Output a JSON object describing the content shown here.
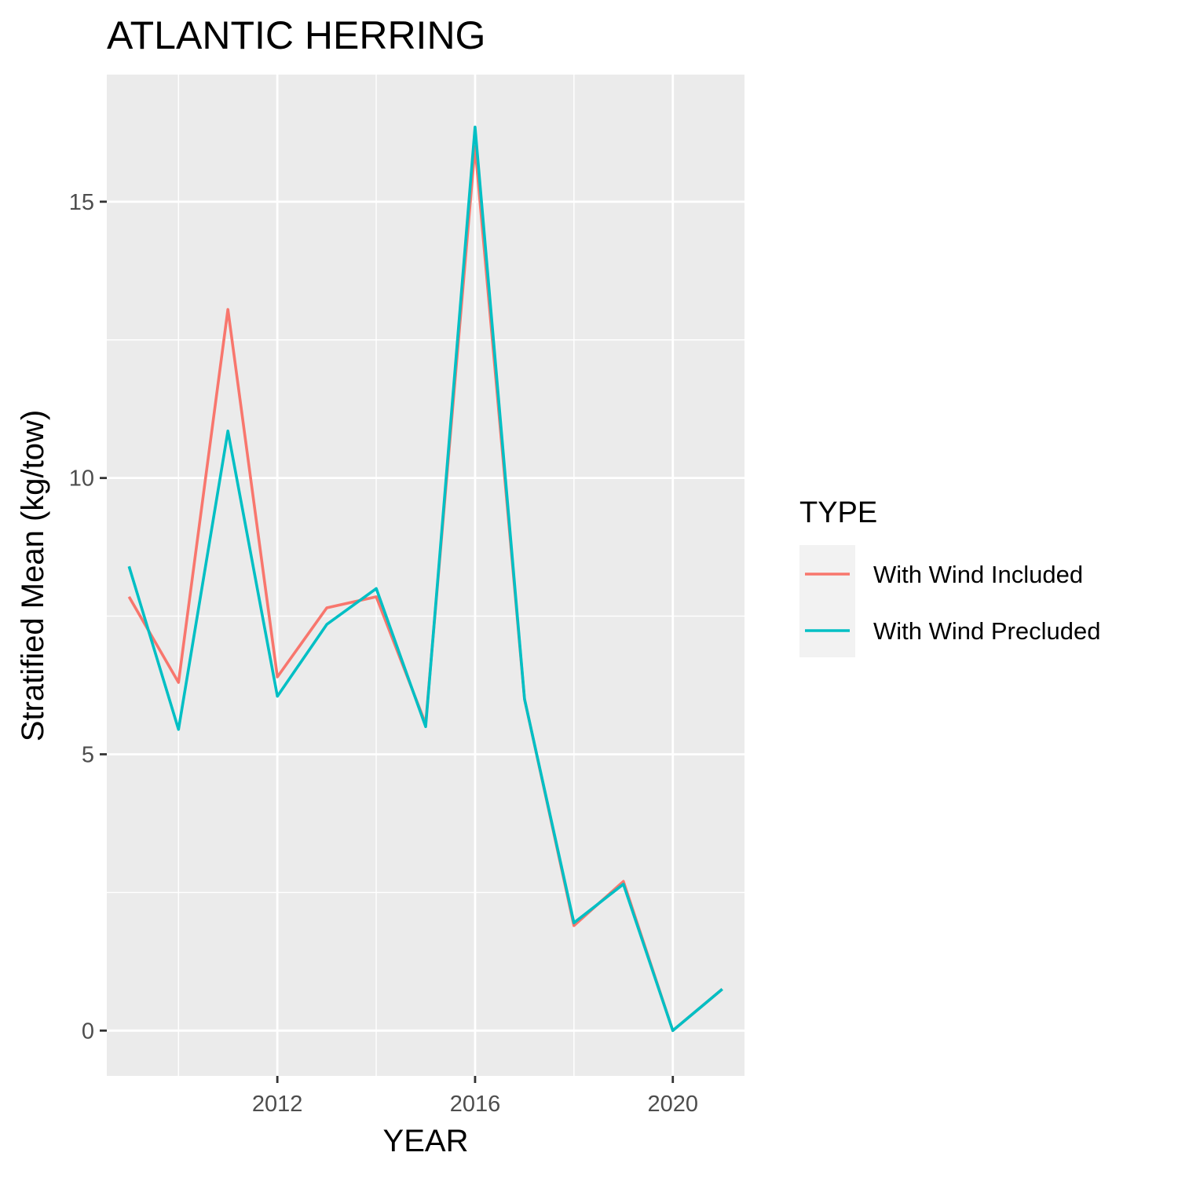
{
  "chart_data": {
    "type": "line",
    "title": "ATLANTIC HERRING",
    "xlabel": "YEAR",
    "ylabel": "Stratified Mean (kg/tow)",
    "xlim": [
      2008.55,
      2021.45
    ],
    "ylim": [
      -0.82,
      17.3
    ],
    "x_ticks": [
      2012,
      2016,
      2020
    ],
    "x_minor": [
      2010,
      2014,
      2018
    ],
    "y_ticks": [
      0,
      5,
      10,
      15
    ],
    "y_minor": [
      2.5,
      7.5,
      12.5
    ],
    "grid": true,
    "legend_position": "right",
    "legend_title": "TYPE",
    "x": [
      2009,
      2010,
      2011,
      2012,
      2013,
      2014,
      2015,
      2016,
      2017,
      2018,
      2019,
      2020,
      2021
    ],
    "series": [
      {
        "name": "With Wind Included",
        "color": "#F8766D",
        "values": [
          7.85,
          6.3,
          13.05,
          6.4,
          7.65,
          7.85,
          5.55,
          16.0,
          6.0,
          1.9,
          2.7,
          0.0,
          0.75
        ]
      },
      {
        "name": "With Wind Precluded",
        "color": "#00BFC4",
        "values": [
          8.4,
          5.45,
          10.85,
          6.05,
          7.35,
          8.0,
          5.5,
          16.35,
          6.0,
          1.95,
          2.65,
          0.0,
          0.75
        ]
      }
    ]
  }
}
